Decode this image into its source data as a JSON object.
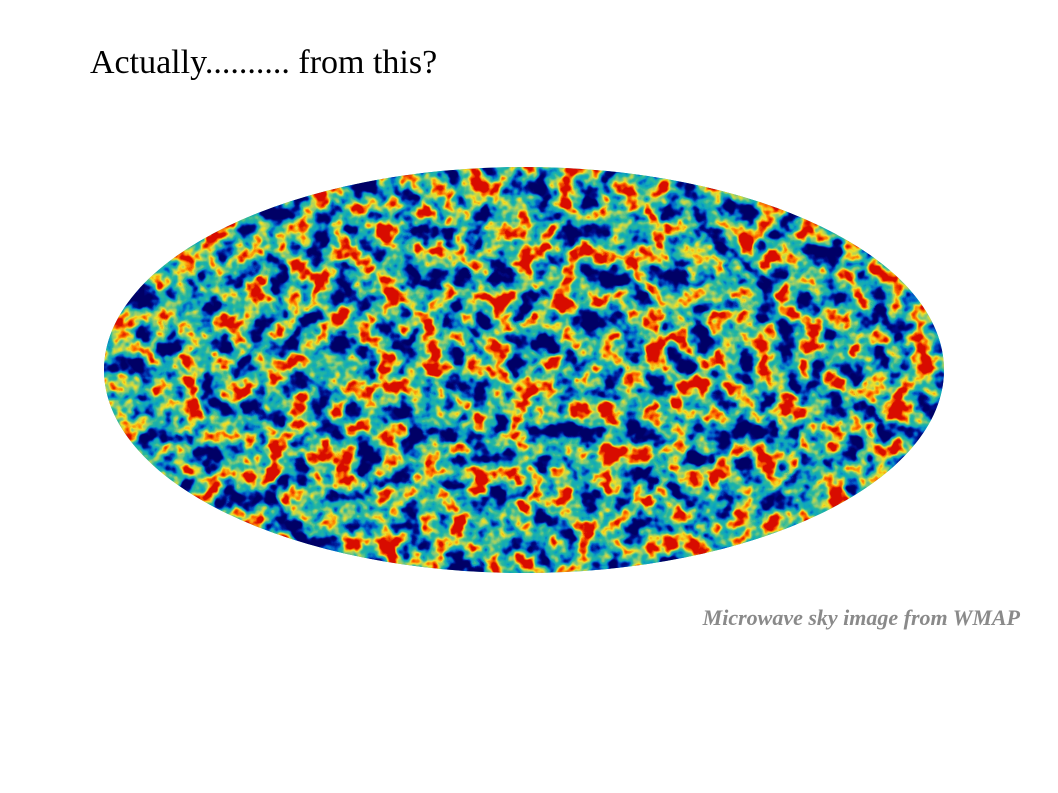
{
  "slide": {
    "title": "Actually.......... from this?",
    "caption": "Microwave sky image from WMAP"
  }
}
